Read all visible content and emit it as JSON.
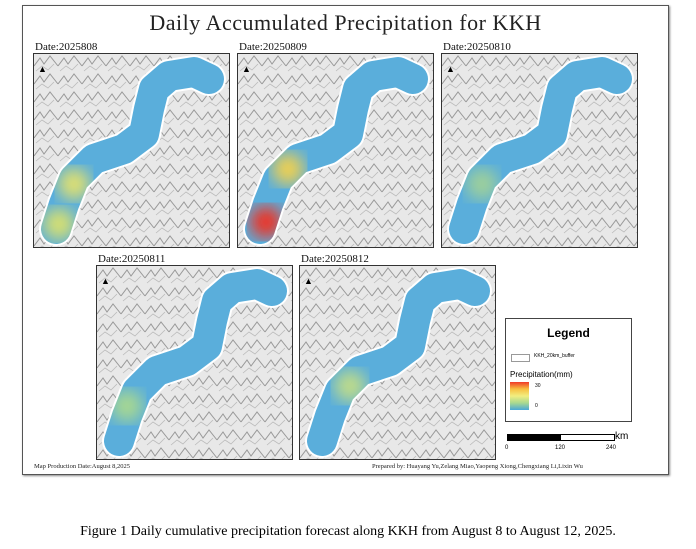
{
  "title": "Daily Accumulated Precipitation for KKH",
  "panels": [
    {
      "date": "Date:2025808",
      "hotspots": [
        {
          "c": "#e0e070"
        },
        {
          "c": "#d8e070"
        }
      ]
    },
    {
      "date": "Date:20250809",
      "hotspots": [
        {
          "c": "#f03020"
        },
        {
          "c": "#f0d050"
        }
      ]
    },
    {
      "date": "Date:20250810",
      "hotspots": [
        {
          "c": "#9fd09a"
        }
      ]
    },
    {
      "date": "Date:20250811",
      "hotspots": [
        {
          "c": "#a8d890"
        }
      ]
    },
    {
      "date": "Date:20250812",
      "hotspots": [
        {
          "c": "#c0dc88"
        }
      ]
    }
  ],
  "legend": {
    "title": "Legend",
    "buffer_label": "KKH_20km_buffer",
    "precip_label": "Precipitation(mm)",
    "max": "30",
    "min": "0",
    "colors": [
      "#f03a2a",
      "#f8c040",
      "#f2ee80",
      "#a8d890",
      "#4aa8d8"
    ]
  },
  "scale": {
    "unit": "km",
    "ticks": [
      "0",
      "120",
      "240"
    ]
  },
  "footer": {
    "date": "Map Production Date:August 8,2025",
    "prepared": "Prepared by: Huayang Yu,Zelang Miao,Yaopeng Xiong,Chengxiang Li,Lixin Wu"
  },
  "caption": "Figure 1 Daily cumulative precipitation forecast along KKH from August 8 to August 12, 2025.",
  "north_icon": "north-arrow-icon"
}
